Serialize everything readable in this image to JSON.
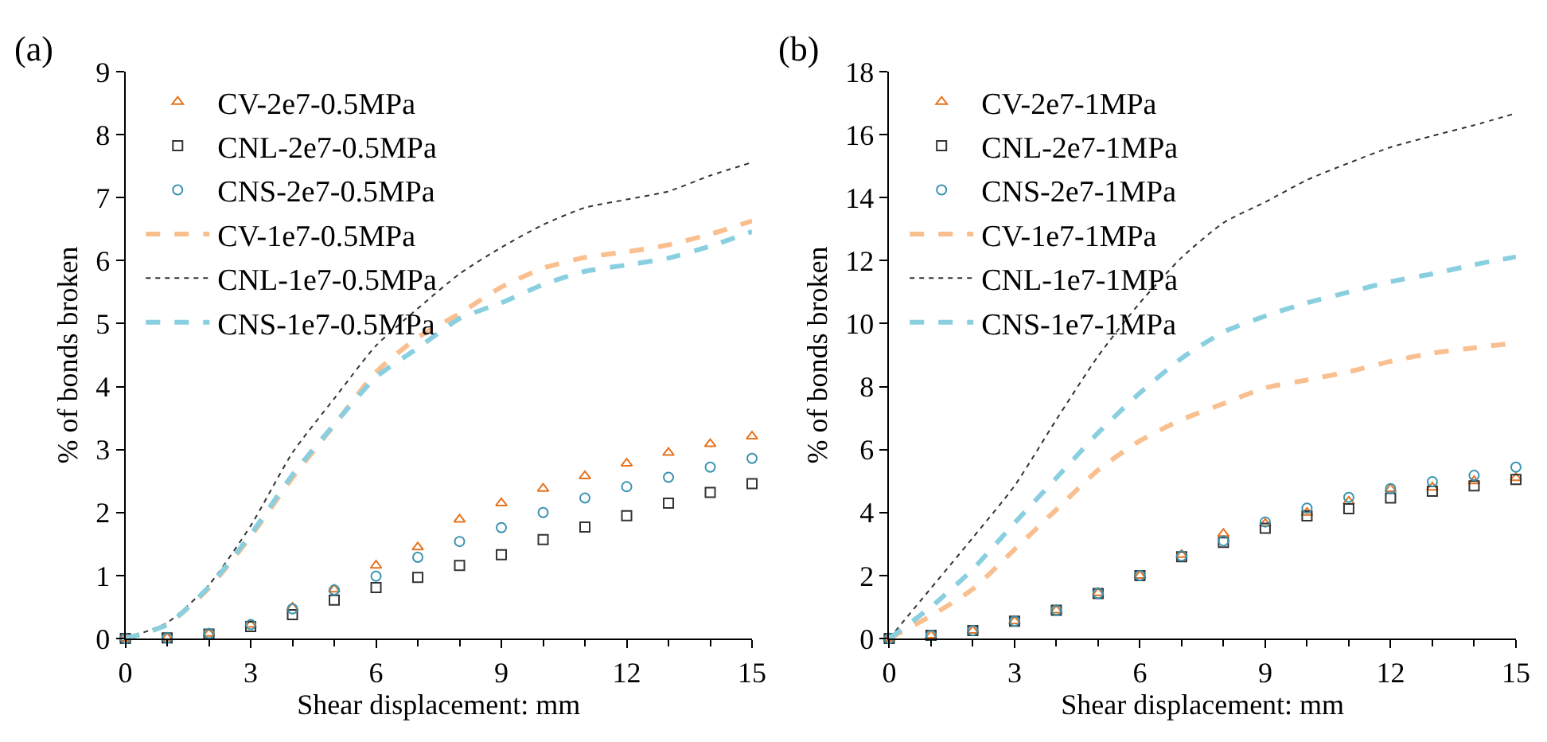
{
  "chart_data": [
    {
      "type": "scatter",
      "title": "(a)",
      "xlabel": "Shear displacement: mm",
      "ylabel": "% of bonds broken",
      "x": [
        0,
        1,
        2,
        3,
        4,
        5,
        6,
        7,
        8,
        9,
        10,
        11,
        12,
        13,
        14,
        15
      ],
      "xlim": [
        0,
        15
      ],
      "xticks": [
        0,
        3,
        6,
        9,
        12,
        15
      ],
      "ylim": [
        0,
        9
      ],
      "yticks": [
        0,
        1,
        2,
        3,
        4,
        5,
        6,
        7,
        8,
        9
      ],
      "legend": "top left",
      "series": [
        {
          "name": "CV-2e7-0.5MPa",
          "marker": "triangle",
          "color": "#e8731e",
          "values": [
            0,
            0.01,
            0.08,
            0.22,
            0.49,
            0.78,
            1.16,
            1.45,
            1.89,
            2.15,
            2.38,
            2.58,
            2.78,
            2.95,
            3.09,
            3.21
          ]
        },
        {
          "name": "CNL-2e7-0.5MPa",
          "marker": "square",
          "color": "#333333",
          "values": [
            0,
            0.01,
            0.07,
            0.19,
            0.38,
            0.61,
            0.81,
            0.97,
            1.16,
            1.33,
            1.57,
            1.77,
            1.95,
            2.15,
            2.32,
            2.46
          ]
        },
        {
          "name": "CNS-2e7-0.5MPa",
          "marker": "circle",
          "color": "#3a93b0",
          "values": [
            0,
            0.01,
            0.08,
            0.22,
            0.47,
            0.77,
            0.99,
            1.29,
            1.54,
            1.76,
            2.0,
            2.23,
            2.41,
            2.56,
            2.72,
            2.86
          ]
        },
        {
          "name": "CV-1e7-0.5MPa",
          "type": "line",
          "line_style": "dashed",
          "color": "#f9bf8f",
          "values": [
            0,
            0.22,
            0.8,
            1.62,
            2.55,
            3.39,
            4.23,
            4.78,
            5.16,
            5.58,
            5.88,
            6.05,
            6.14,
            6.25,
            6.42,
            6.63
          ]
        },
        {
          "name": "CNL-1e7-0.5MPa",
          "type": "line",
          "line_style": "dotted",
          "color": "#333333",
          "values": [
            0,
            0.25,
            0.85,
            1.79,
            2.95,
            3.81,
            4.65,
            5.24,
            5.79,
            6.21,
            6.57,
            6.84,
            6.97,
            7.1,
            7.35,
            7.56
          ]
        },
        {
          "name": "CNS-1e7-0.5MPa",
          "type": "line",
          "line_style": "dashed",
          "color": "#89cfe0",
          "values": [
            0,
            0.22,
            0.82,
            1.65,
            2.6,
            3.4,
            4.15,
            4.61,
            5.08,
            5.33,
            5.62,
            5.83,
            5.93,
            6.04,
            6.23,
            6.46
          ]
        }
      ]
    },
    {
      "type": "scatter",
      "title": "(b)",
      "xlabel": "Shear displacement: mm",
      "ylabel": "% of bonds broken",
      "x": [
        0,
        1,
        2,
        3,
        4,
        5,
        6,
        7,
        8,
        9,
        10,
        11,
        12,
        13,
        14,
        15
      ],
      "xlim": [
        0,
        15
      ],
      "xticks": [
        0,
        3,
        6,
        9,
        12,
        15
      ],
      "ylim": [
        0,
        18
      ],
      "yticks": [
        0,
        2,
        4,
        6,
        8,
        10,
        12,
        14,
        16,
        18
      ],
      "legend": "top left",
      "series": [
        {
          "name": "CV-2e7-1MPa",
          "marker": "triangle",
          "color": "#e8731e",
          "values": [
            0,
            0.1,
            0.25,
            0.55,
            0.9,
            1.45,
            2.0,
            2.66,
            3.33,
            3.65,
            4.0,
            4.35,
            4.75,
            4.8,
            5.0,
            5.1
          ]
        },
        {
          "name": "CNL-2e7-1MPa",
          "marker": "square",
          "color": "#333333",
          "values": [
            0,
            0.1,
            0.25,
            0.55,
            0.9,
            1.43,
            2.0,
            2.6,
            3.05,
            3.5,
            3.89,
            4.12,
            4.46,
            4.68,
            4.85,
            5.05
          ]
        },
        {
          "name": "CNS-2e7-1MPa",
          "marker": "circle",
          "color": "#3a93b0",
          "values": [
            0,
            0.1,
            0.25,
            0.55,
            0.9,
            1.43,
            2.0,
            2.62,
            3.1,
            3.7,
            4.14,
            4.48,
            4.76,
            4.98,
            5.18,
            5.44
          ]
        },
        {
          "name": "CV-1e7-1MPa",
          "type": "line",
          "line_style": "dashed",
          "color": "#f9bf8f",
          "values": [
            0,
            0.72,
            1.57,
            2.83,
            4.09,
            5.35,
            6.28,
            6.95,
            7.46,
            7.96,
            8.21,
            8.47,
            8.8,
            9.06,
            9.23,
            9.39
          ]
        },
        {
          "name": "CNL-1e7-1MPa",
          "type": "line",
          "line_style": "dotted",
          "color": "#333333",
          "values": [
            0,
            1.6,
            3.2,
            4.85,
            6.95,
            8.97,
            10.66,
            12.1,
            13.2,
            13.86,
            14.56,
            15.1,
            15.6,
            15.96,
            16.3,
            16.68
          ]
        },
        {
          "name": "CNS-1e7-1MPa",
          "type": "line",
          "line_style": "dashed",
          "color": "#89cfe0",
          "values": [
            0,
            1.0,
            2.2,
            3.67,
            5.1,
            6.53,
            7.8,
            8.9,
            9.73,
            10.24,
            10.66,
            11.0,
            11.33,
            11.58,
            11.87,
            12.12
          ]
        }
      ]
    }
  ]
}
